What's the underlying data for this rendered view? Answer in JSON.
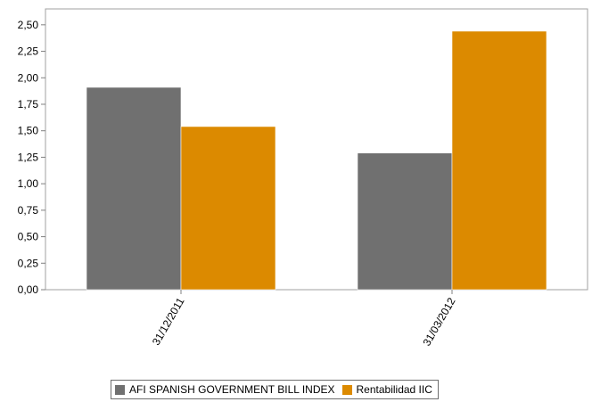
{
  "chart_data": {
    "type": "bar",
    "categories": [
      "31/12/2011",
      "31/03/2012"
    ],
    "series": [
      {
        "name": "AFI SPANISH GOVERNMENT BILL INDEX",
        "values": [
          1.91,
          1.29
        ],
        "color": "#707070"
      },
      {
        "name": "Rentabilidad IIC",
        "values": [
          1.54,
          2.44
        ],
        "color": "#dc8a00"
      }
    ],
    "yticks": [
      "0,00",
      "0,25",
      "0,50",
      "0,75",
      "1,00",
      "1,25",
      "1,50",
      "1,75",
      "2,00",
      "2,25",
      "2,50"
    ],
    "ylim": [
      0,
      2.65
    ],
    "grid": false,
    "legend_position": "bottom"
  }
}
